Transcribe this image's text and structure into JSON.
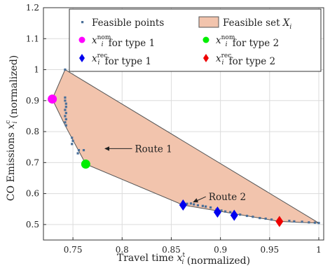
{
  "chart_data": {
    "type": "scatter",
    "xlabel": "Travel time x_i^t (normalized)",
    "ylabel": "CO Emissions x_i^c (normalized)",
    "xlim": [
      0.72,
      1.005
    ],
    "ylim": [
      0.45,
      1.2
    ],
    "xticks": [
      0.75,
      0.8,
      0.85,
      0.9,
      0.95,
      1
    ],
    "xtick_labels": [
      "0.75",
      "0.8",
      "0.85",
      "0.9",
      "0.95",
      "1"
    ],
    "yticks": [
      0.5,
      0.6,
      0.7,
      0.8,
      0.9,
      1,
      1.1,
      1.2
    ],
    "ytick_labels": [
      "0.5",
      "0.6",
      "0.7",
      "0.8",
      "0.9",
      "1",
      "1.1",
      "1.2"
    ],
    "grid": true,
    "legend_position": "top-right",
    "legend": [
      {
        "label": "Feasible points",
        "marker": "dot",
        "color": "#4a6f98"
      },
      {
        "label": "Feasible set X_i",
        "marker": "patch",
        "color": "#f2c4ad"
      },
      {
        "label": "x_i^nom for type 1",
        "marker": "circle",
        "color": "#ff00ff"
      },
      {
        "label": "x_i^nom for type 2",
        "marker": "circle",
        "color": "#00ee00"
      },
      {
        "label": "x_i^rec for type 1",
        "marker": "diamond",
        "color": "#0000ee"
      },
      {
        "label": "x_i^rec for type 2",
        "marker": "diamond",
        "color": "#ee0000"
      }
    ],
    "feasible_set": {
      "color": "#f2c4ad",
      "edge_color": "#555555",
      "vertices": [
        [
          0.729,
          0.905
        ],
        [
          0.742,
          1.0
        ],
        [
          1.0,
          0.505
        ],
        [
          0.98,
          0.507
        ],
        [
          0.96,
          0.51
        ],
        [
          0.862,
          0.563
        ],
        [
          0.763,
          0.695
        ],
        [
          0.742,
          0.82
        ]
      ]
    },
    "feasible_points": {
      "color": "#4a6f98",
      "points": [
        [
          0.742,
          1.0
        ],
        [
          0.742,
          0.91
        ],
        [
          0.742,
          0.9
        ],
        [
          0.743,
          0.89
        ],
        [
          0.743,
          0.88
        ],
        [
          0.742,
          0.87
        ],
        [
          0.743,
          0.86
        ],
        [
          0.742,
          0.85
        ],
        [
          0.743,
          0.84
        ],
        [
          0.742,
          0.83
        ],
        [
          0.743,
          0.82
        ],
        [
          0.749,
          0.78
        ],
        [
          0.75,
          0.77
        ],
        [
          0.749,
          0.76
        ],
        [
          0.756,
          0.74
        ],
        [
          0.755,
          0.73
        ],
        [
          0.761,
          0.74
        ],
        [
          0.866,
          0.567
        ],
        [
          0.87,
          0.568
        ],
        [
          0.873,
          0.565
        ],
        [
          0.877,
          0.562
        ],
        [
          0.882,
          0.56
        ],
        [
          0.885,
          0.558
        ],
        [
          0.89,
          0.555
        ],
        [
          0.896,
          0.548
        ],
        [
          0.901,
          0.545
        ],
        [
          0.905,
          0.542
        ],
        [
          0.91,
          0.54
        ],
        [
          0.92,
          0.532
        ],
        [
          0.927,
          0.528
        ],
        [
          0.933,
          0.525
        ],
        [
          0.94,
          0.521
        ],
        [
          0.946,
          0.519
        ],
        [
          0.952,
          0.516
        ],
        [
          0.97,
          0.512
        ],
        [
          0.975,
          0.51
        ],
        [
          0.983,
          0.509
        ],
        [
          0.99,
          0.507
        ],
        [
          0.996,
          0.506
        ],
        [
          1.0,
          0.505
        ]
      ]
    },
    "nominal": [
      {
        "type": "type 1",
        "x": 0.729,
        "y": 0.905,
        "color": "#ff00ff"
      },
      {
        "type": "type 2",
        "x": 0.763,
        "y": 0.695,
        "color": "#00ee00"
      }
    ],
    "recommended": [
      {
        "type": "type 1",
        "x": 0.862,
        "y": 0.563,
        "color": "#0000ee"
      },
      {
        "type": "type 1",
        "x": 0.897,
        "y": 0.54,
        "color": "#0000ee"
      },
      {
        "type": "type 1",
        "x": 0.914,
        "y": 0.53,
        "color": "#0000ee"
      },
      {
        "type": "type 2",
        "x": 0.96,
        "y": 0.51,
        "color": "#ee0000"
      }
    ],
    "annotations": [
      {
        "text": "Route 1",
        "x": 0.813,
        "y": 0.745,
        "arrow_to": [
          0.782,
          0.745
        ]
      },
      {
        "text": "Route 2",
        "x": 0.888,
        "y": 0.59,
        "arrow_to": [
          0.872,
          0.572
        ]
      }
    ]
  }
}
